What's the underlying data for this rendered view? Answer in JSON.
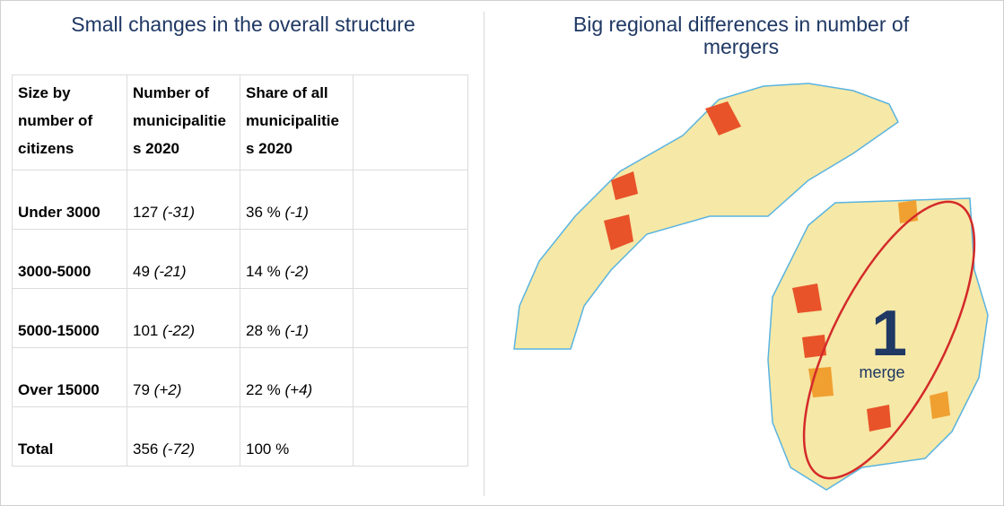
{
  "left": {
    "title": "Small changes in the overall structure",
    "table": {
      "header": [
        "Size by number of citizens",
        "Number of municipalities 2020",
        "Share of all municipalities 2020"
      ],
      "rows": [
        {
          "size": "Under 3000",
          "number": "127",
          "number_change": "(-31)",
          "share": "36 %",
          "share_change": "(-1)"
        },
        {
          "size": "3000-5000",
          "number": "49",
          "number_change": "(-21)",
          "share": "14 %",
          "share_change": "(-2)"
        },
        {
          "size": "5000-15000",
          "number": "101",
          "number_change": "(-22)",
          "share": "28 %",
          "share_change": "(-1)"
        },
        {
          "size": "Over 15000",
          "number": "79",
          "number_change": "(+2)",
          "share": "22 %",
          "share_change": "(+4)"
        },
        {
          "size": "Total",
          "number": "356",
          "number_change": "(-72)",
          "share": "100 %"
        }
      ]
    }
  },
  "right": {
    "title": "Big regional differences in number of mergers",
    "annotation": {
      "number": "1",
      "label": "merge"
    }
  }
}
